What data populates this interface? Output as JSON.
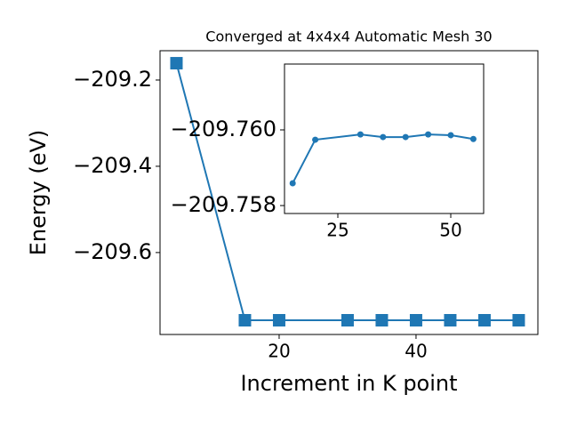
{
  "chart_data": [
    {
      "type": "line",
      "title": "Converged at 4x4x4 Automatic Mesh 30",
      "xlabel": "Increment in K point",
      "ylabel": "Energy (eV)",
      "x": [
        5,
        15,
        20,
        30,
        35,
        40,
        45,
        50,
        55
      ],
      "series": [
        {
          "color": "#1f77b4",
          "marker": "square",
          "values": [
            -209.161,
            -209.757,
            -209.757,
            -209.757,
            -209.757,
            -209.757,
            -209.757,
            -209.757,
            -209.757
          ]
        }
      ],
      "xlim": [
        2.6,
        57.8
      ],
      "ylim": [
        -209.79,
        -209.132
      ],
      "xticks": [
        20,
        40
      ],
      "yticks": [
        {
          "value": -209.2,
          "label": "−209.2"
        },
        {
          "value": -209.4,
          "label": "−209.4"
        },
        {
          "value": -209.6,
          "label": "−209.6"
        }
      ]
    },
    {
      "type": "line",
      "x": [
        15,
        20,
        30,
        35,
        40,
        45,
        50,
        55
      ],
      "series": [
        {
          "color": "#1f77b4",
          "marker": "circle",
          "values": [
            -209.75859,
            -209.75974,
            -209.75988,
            -209.75981,
            -209.75981,
            -209.75988,
            -209.75986,
            -209.75976
          ]
        }
      ],
      "xlim": [
        13.19,
        57.28
      ],
      "ylim": [
        -209.75779,
        -209.76174
      ],
      "xticks": [
        25,
        50
      ],
      "yticks": [
        {
          "value": -209.76,
          "label": "−209.760"
        },
        {
          "value": -209.758,
          "label": "−209.758"
        }
      ]
    }
  ]
}
